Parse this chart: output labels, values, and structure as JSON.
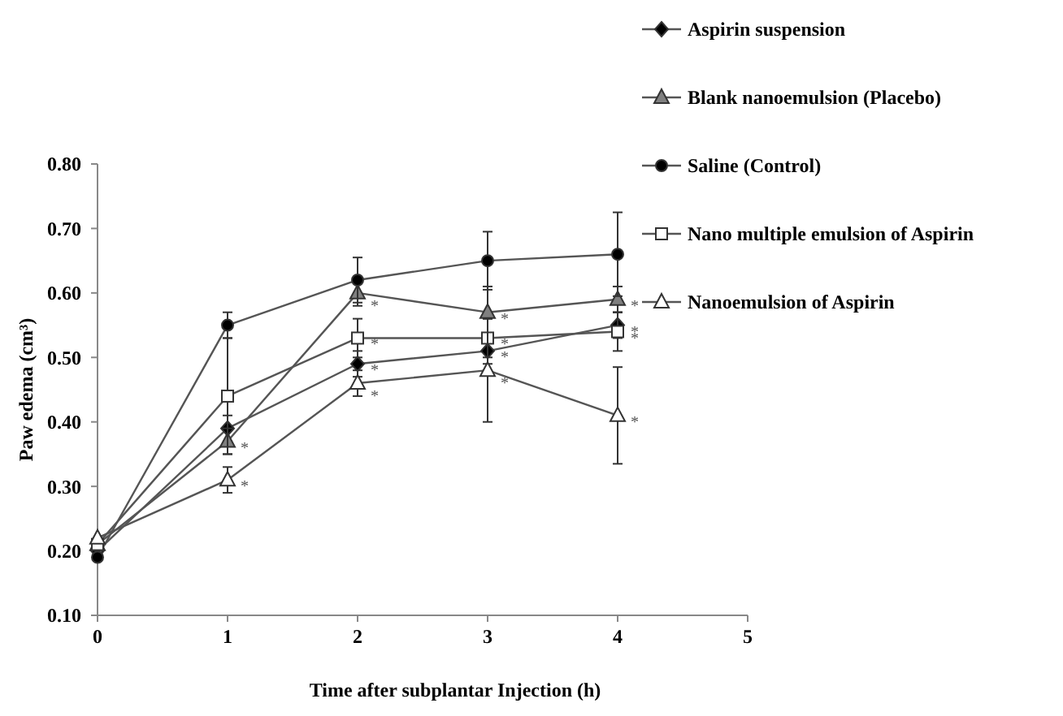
{
  "chart_data": {
    "type": "line",
    "xlabel": "Time after subplantar Injection (h)",
    "ylabel": "Paw edema (cm³)",
    "x": [
      0,
      1,
      2,
      3,
      4
    ],
    "xlim": [
      0,
      5
    ],
    "xticks": [
      0,
      1,
      2,
      3,
      4,
      5
    ],
    "ylim": [
      0.1,
      0.8
    ],
    "yticks": [
      {
        "value": 0.1,
        "label": "0.10"
      },
      {
        "value": 0.2,
        "label": "0.20"
      },
      {
        "value": 0.3,
        "label": "0.30"
      },
      {
        "value": 0.4,
        "label": "0.40"
      },
      {
        "value": 0.5,
        "label": "0.50"
      },
      {
        "value": 0.6,
        "label": "0.60"
      },
      {
        "value": 0.7,
        "label": "0.70"
      },
      {
        "value": 0.8,
        "label": "0.80"
      }
    ],
    "grid": false,
    "legend": "top right",
    "line_style": "solid",
    "series": [
      {
        "name": "Aspirin suspension",
        "color": "#000000",
        "marker": "diamond",
        "values": [
          0.2,
          0.39,
          0.49,
          0.51,
          0.55
        ],
        "errors": [
          null,
          0.02,
          0.02,
          0.02,
          0.02
        ]
      },
      {
        "name": "Blank nanoemulsion (Placebo)",
        "color": "#808080",
        "marker": "triangle",
        "values": [
          0.21,
          0.37,
          0.6,
          0.57,
          0.59
        ],
        "errors": [
          null,
          0.02,
          0.02,
          0.04,
          0.02
        ]
      },
      {
        "name": "Saline (Control)",
        "color": "#000000",
        "marker": "circle",
        "values": [
          0.19,
          0.55,
          0.62,
          0.65,
          0.66
        ],
        "errors": [
          null,
          0.02,
          0.035,
          0.045,
          0.065
        ]
      },
      {
        "name": "Nano multiple emulsion of Aspirin",
        "color": "#ffffff",
        "marker": "square",
        "values": [
          0.21,
          0.44,
          0.53,
          0.53,
          0.54
        ],
        "errors": [
          null,
          0.09,
          0.03,
          0.03,
          0.03
        ]
      },
      {
        "name": "Nanoemulsion of Aspirin",
        "color": "#ffffff",
        "marker": "triangle",
        "values": [
          0.22,
          0.31,
          0.46,
          0.48,
          0.41
        ],
        "errors": [
          null,
          0.02,
          0.02,
          0.08,
          0.075
        ]
      }
    ],
    "annotations": [
      {
        "text": "*",
        "x": 1,
        "y": 0.37
      },
      {
        "text": "*",
        "x": 1,
        "y": 0.31
      },
      {
        "text": "*",
        "x": 2,
        "y": 0.59
      },
      {
        "text": "*",
        "x": 2,
        "y": 0.53
      },
      {
        "text": "*",
        "x": 2,
        "y": 0.49
      },
      {
        "text": "*",
        "x": 2,
        "y": 0.45
      },
      {
        "text": "*",
        "x": 3,
        "y": 0.57
      },
      {
        "text": "*",
        "x": 3,
        "y": 0.53
      },
      {
        "text": "*",
        "x": 3,
        "y": 0.51
      },
      {
        "text": "*",
        "x": 3,
        "y": 0.47
      },
      {
        "text": "*",
        "x": 4,
        "y": 0.59
      },
      {
        "text": "*",
        "x": 4,
        "y": 0.55
      },
      {
        "text": "*",
        "x": 4,
        "y": 0.54
      },
      {
        "text": "*",
        "x": 4,
        "y": 0.41
      }
    ]
  }
}
